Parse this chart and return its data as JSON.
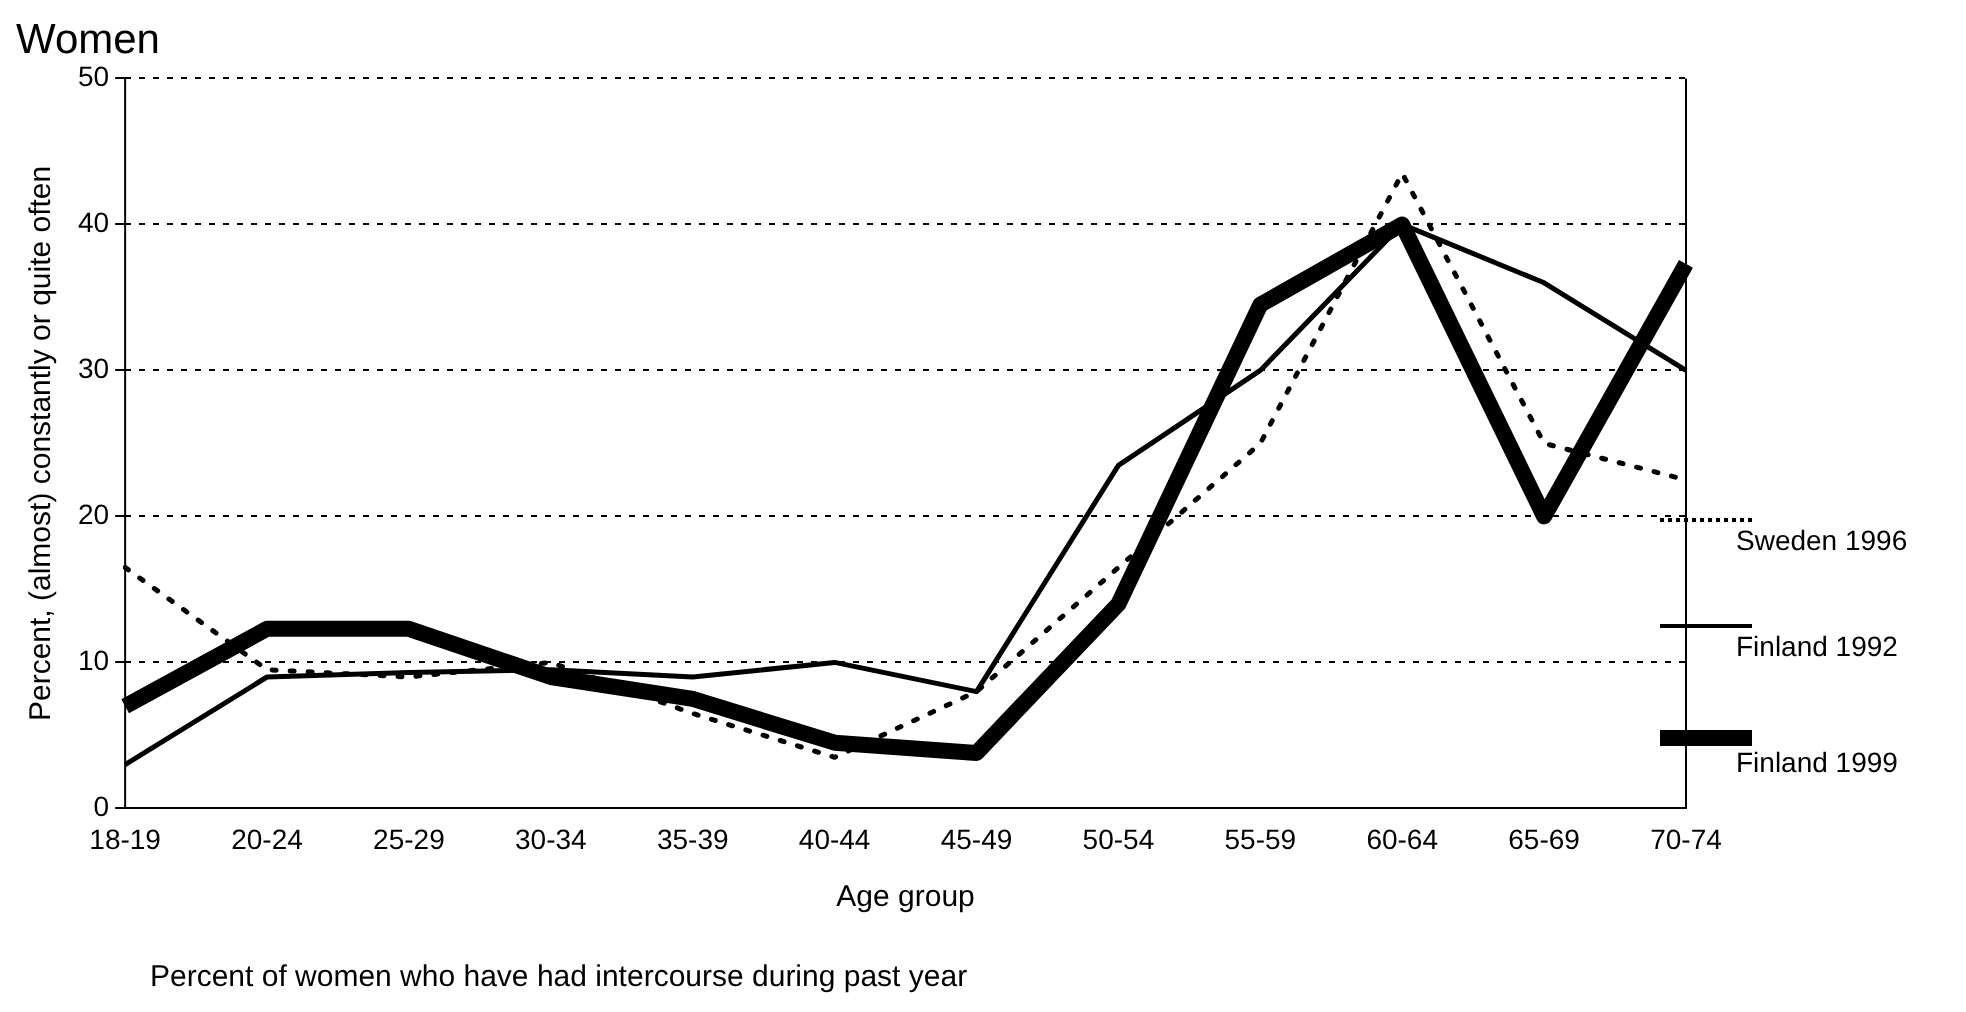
{
  "chart_data": {
    "type": "line",
    "title": "Women",
    "xlabel": "Age group",
    "ylabel": "Percent, (almost) constantly or quite often",
    "categories": [
      "18-19",
      "20-24",
      "25-29",
      "30-34",
      "35-39",
      "40-44",
      "45-49",
      "50-54",
      "55-59",
      "60-64",
      "65-69",
      "70-74"
    ],
    "series": [
      {
        "name": "Sweden 1996",
        "color": "#000000",
        "line_style": "dotted",
        "values": [
          16.5,
          9.5,
          9,
          10,
          6.5,
          3.5,
          8,
          16.5,
          25,
          43.5,
          25,
          22.5
        ]
      },
      {
        "name": "Finland 1992",
        "color": "#000000",
        "line_style": "solid",
        "values": [
          3,
          9,
          9.3,
          9.5,
          9,
          10,
          8,
          23.5,
          30,
          40,
          36,
          30
        ]
      },
      {
        "name": "Finland 1999",
        "color": "#000000",
        "line_style": "solid",
        "values": [
          7,
          12.3,
          12.3,
          9,
          7.5,
          4.5,
          3.8,
          14,
          34.5,
          40,
          20,
          37.3
        ]
      }
    ],
    "ylim": [
      0,
      50
    ],
    "yticks": [
      0,
      10,
      20,
      30,
      40,
      50
    ],
    "grid": "y",
    "legend": "right",
    "marker": "none",
    "annotations": [
      "Percent of women who have had intercourse during past year"
    ]
  }
}
